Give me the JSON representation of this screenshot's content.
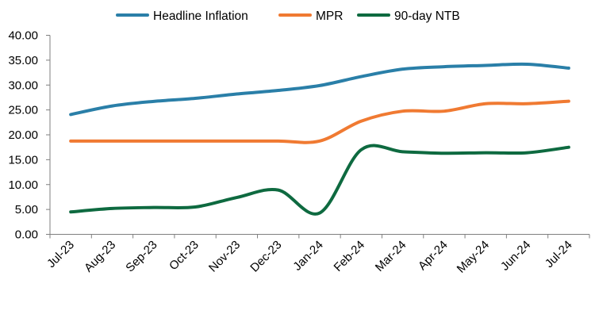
{
  "chart_data": {
    "type": "line",
    "title": "",
    "xlabel": "",
    "ylabel": "",
    "categories": [
      "Jul-23",
      "Aug-23",
      "Sep-23",
      "Oct-23",
      "Nov-23",
      "Dec-23",
      "Jan-24",
      "Feb-24",
      "Mar-24",
      "Apr-24",
      "May-24",
      "Jun-24",
      "Jul-24"
    ],
    "ylim": [
      0,
      40
    ],
    "yticks": [
      "0.00",
      "5.00",
      "10.00",
      "15.00",
      "20.00",
      "25.00",
      "30.00",
      "35.00",
      "40.00"
    ],
    "grid": false,
    "legend_position": "top",
    "series": [
      {
        "name": "Headline Inflation",
        "color": "#2a7fa8",
        "values": [
          24.08,
          25.8,
          26.72,
          27.33,
          28.2,
          28.92,
          29.9,
          31.7,
          33.2,
          33.69,
          33.95,
          34.19,
          33.4
        ]
      },
      {
        "name": "MPR",
        "color": "#f07a32",
        "values": [
          18.75,
          18.75,
          18.75,
          18.75,
          18.75,
          18.75,
          18.75,
          22.75,
          24.75,
          24.75,
          26.25,
          26.25,
          26.75
        ]
      },
      {
        "name": "90-day NTB",
        "color": "#0e6a40",
        "values": [
          4.5,
          5.2,
          5.4,
          5.5,
          7.4,
          8.9,
          4.3,
          17.0,
          16.6,
          16.3,
          16.4,
          16.4,
          17.5
        ]
      }
    ]
  }
}
